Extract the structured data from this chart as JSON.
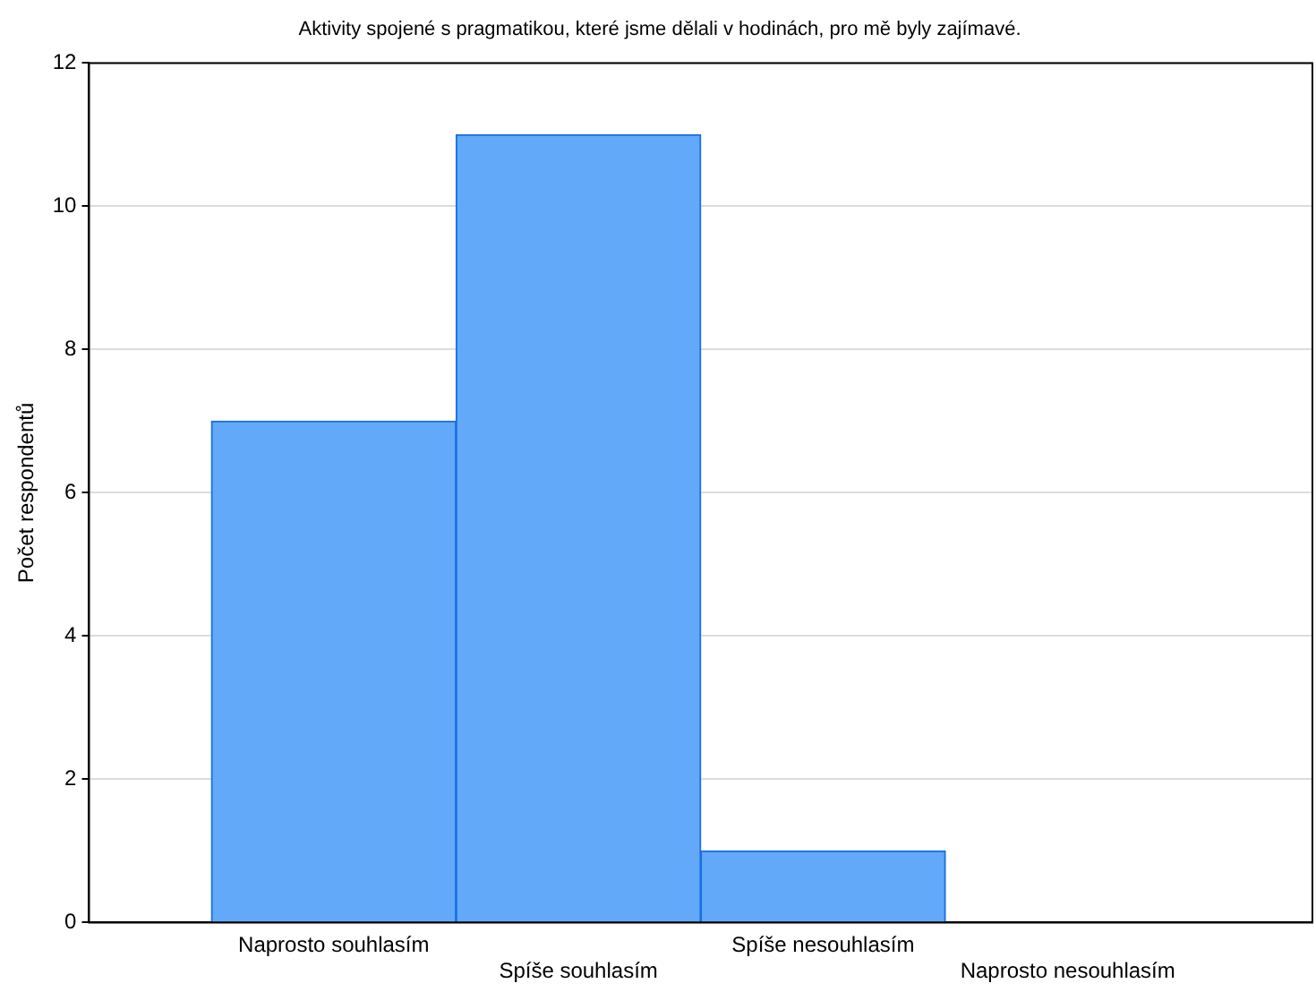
{
  "chart_data": {
    "type": "bar",
    "title": "Aktivity spojené s pragmatikou, které jsme dělali v hodinách, pro mě byly zajímavé.",
    "ylabel": "Počet respondentů",
    "categories": [
      "Naprosto souhlasím",
      "Spíše souhlasím",
      "Spíše nesouhlasím",
      "Naprosto nesouhlasím"
    ],
    "values": [
      7,
      11,
      1,
      0
    ],
    "color": "#62a9fa",
    "ylim": [
      0,
      12
    ],
    "yticks": [
      0,
      2,
      4,
      6,
      8,
      10,
      12
    ],
    "grid": "y"
  }
}
